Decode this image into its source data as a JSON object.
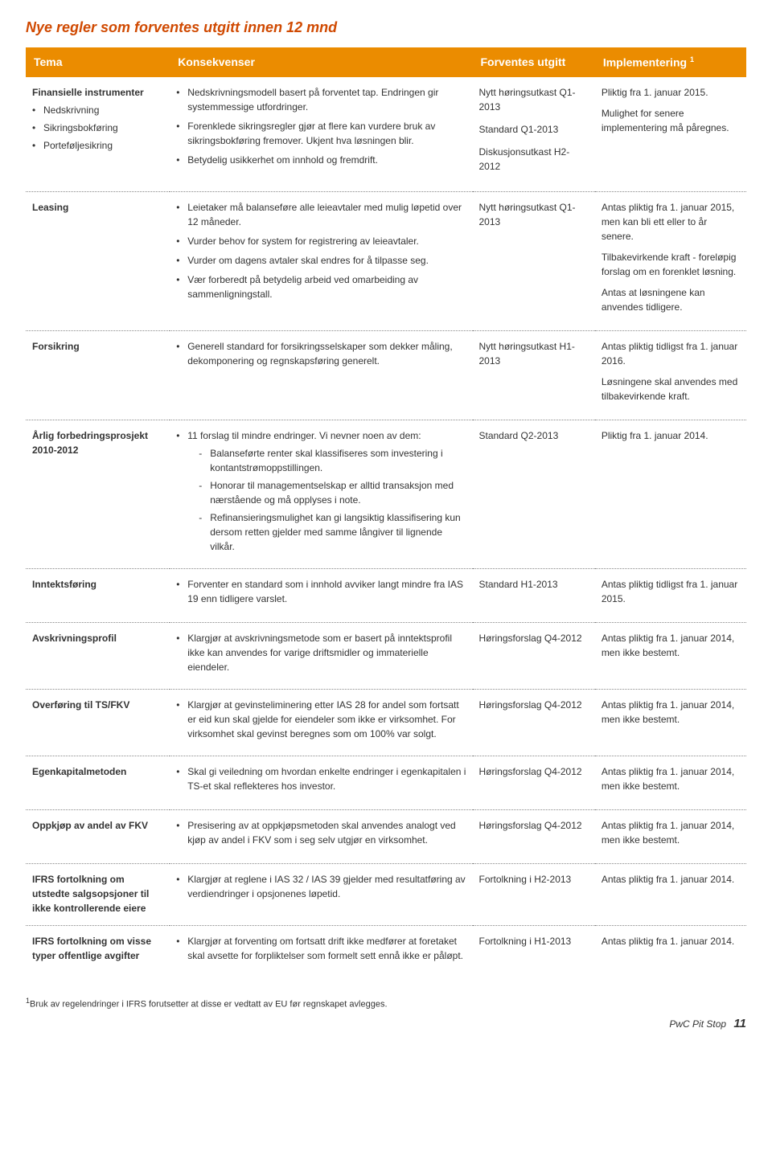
{
  "colors": {
    "title": "#d04a02",
    "headerBg": "#eb8c00"
  },
  "title": "Nye regler som forventes utgitt innen 12 mnd",
  "headers": {
    "tema": "Tema",
    "konsekvenser": "Konsekvenser",
    "forventes": "Forventes utgitt",
    "implementering": "Implementering",
    "sup": "1"
  },
  "rows": [
    {
      "tema": "Finansielle instrumenter",
      "temaBullets": [
        "Nedskrivning",
        "Sikringsbokføring",
        "Porteføljesikring"
      ],
      "bullets": [
        "Nedskrivningsmodell basert på forventet tap. Endringen gir systemmessige utfordringer.",
        "Forenklede sikringsregler gjør at flere kan vurdere bruk av sikringsbokføring fremover. Ukjent hva løsningen blir.",
        "Betydelig usikkerhet om innhold og fremdrift."
      ],
      "forventes": [
        "Nytt høringsutkast Q1-2013",
        "Standard Q1-2013",
        "Diskusjonsutkast H2-2012"
      ],
      "impl": [
        "Pliktig fra 1. januar 2015.",
        "Mulighet for senere implementering må påregnes."
      ]
    },
    {
      "tema": "Leasing",
      "bullets": [
        "Leietaker må balanseføre alle leieavtaler med mulig løpetid over 12 måneder.",
        "Vurder behov for system for registrering av leieavtaler.",
        "Vurder om dagens avtaler skal endres for å tilpasse seg.",
        "Vær forberedt på betydelig arbeid ved omarbeiding av sammenligningstall."
      ],
      "forventes": [
        "Nytt høringsutkast Q1-2013"
      ],
      "impl": [
        "Antas pliktig fra 1. januar 2015, men kan bli ett eller to år senere.",
        "Tilbakevirkende kraft - foreløpig forslag om en forenklet løsning.",
        "Antas at løsningene kan anvendes tidligere."
      ]
    },
    {
      "tema": "Forsikring",
      "bullets": [
        "Generell standard for forsikringsselskaper som dekker måling, dekomponering og regnskapsføring generelt."
      ],
      "forventes": [
        "Nytt høringsutkast H1-2013"
      ],
      "impl": [
        "Antas pliktig tidligst fra 1. januar 2016.",
        "Løsningene skal anvendes med tilbakevirkende kraft."
      ]
    },
    {
      "tema": "Årlig forbedringsprosjekt 2010-2012",
      "bullets": [
        "11 forslag til mindre endringer. Vi nevner noen av dem:"
      ],
      "subBullets": [
        "Balanseførte renter skal klassifiseres som investering i kontantstrømoppstillingen.",
        "Honorar til managementselskap er alltid transaksjon med nærstående og må opplyses i note.",
        "Refinansieringsmulighet kan gi langsiktig klassifisering kun dersom retten gjelder med samme långiver til lignende vilkår."
      ],
      "forventes": [
        "Standard Q2-2013"
      ],
      "impl": [
        "Pliktig fra 1. januar 2014."
      ]
    },
    {
      "tema": "Inntektsføring",
      "bullets": [
        "Forventer en standard som i innhold avviker langt mindre fra IAS 19 enn tidligere varslet."
      ],
      "forventes": [
        "Standard H1-2013"
      ],
      "impl": [
        "Antas pliktig tidligst fra 1. januar 2015."
      ]
    },
    {
      "tema": "Avskrivningsprofil",
      "bullets": [
        "Klargjør at avskrivningsmetode som er basert på inntektsprofil ikke kan anvendes for varige driftsmidler og immaterielle eiendeler."
      ],
      "forventes": [
        "Høringsforslag Q4-2012"
      ],
      "impl": [
        "Antas pliktig fra 1. januar 2014, men ikke bestemt."
      ]
    },
    {
      "tema": "Overføring til TS/FKV",
      "bullets": [
        "Klargjør at gevinsteliminering etter IAS 28 for andel som fortsatt er eid kun skal gjelde for eiendeler som ikke er virksomhet. For virksomhet skal gevinst beregnes som om 100% var solgt."
      ],
      "forventes": [
        "Høringsforslag Q4-2012"
      ],
      "impl": [
        "Antas pliktig fra 1. januar 2014, men ikke bestemt."
      ]
    },
    {
      "tema": "Egenkapitalmetoden",
      "bullets": [
        "Skal gi veiledning om hvordan enkelte endringer i egenkapitalen i TS-et skal reflekteres hos investor."
      ],
      "forventes": [
        "Høringsforslag Q4-2012"
      ],
      "impl": [
        "Antas pliktig fra 1. januar 2014, men ikke bestemt."
      ]
    },
    {
      "tema": "Oppkjøp av andel av FKV",
      "bullets": [
        "Presisering av at oppkjøpsmetoden skal anvendes analogt ved kjøp av andel i FKV som i seg selv utgjør en virksomhet."
      ],
      "forventes": [
        "Høringsforslag Q4-2012"
      ],
      "impl": [
        "Antas pliktig fra 1. januar 2014, men ikke bestemt."
      ]
    },
    {
      "tema": "IFRS fortolkning om utstedte salgsopsjoner til ikke kontrollerende eiere",
      "bullets": [
        "Klargjør at reglene i IAS 32 / IAS 39 gjelder med resultatføring av verdiendringer i opsjonenes løpetid."
      ],
      "forventes": [
        "Fortolkning i H2-2013"
      ],
      "impl": [
        "Antas pliktig fra 1. januar 2014."
      ]
    },
    {
      "tema": "IFRS fortolkning om visse typer offentlige avgifter",
      "bullets": [
        "Klargjør at forventing om fortsatt drift ikke medfører at foretaket skal avsette for forpliktelser som formelt sett ennå ikke er påløpt."
      ],
      "forventes": [
        "Fortolkning i H1-2013"
      ],
      "impl": [
        "Antas pliktig fra 1. januar 2014."
      ]
    }
  ],
  "footnoteSup": "1",
  "footnote": "Bruk av regelendringer i IFRS forutsetter at disse er vedtatt av EU før regnskapet avlegges.",
  "footer": {
    "brand": "PwC Pit Stop",
    "page": "11"
  }
}
